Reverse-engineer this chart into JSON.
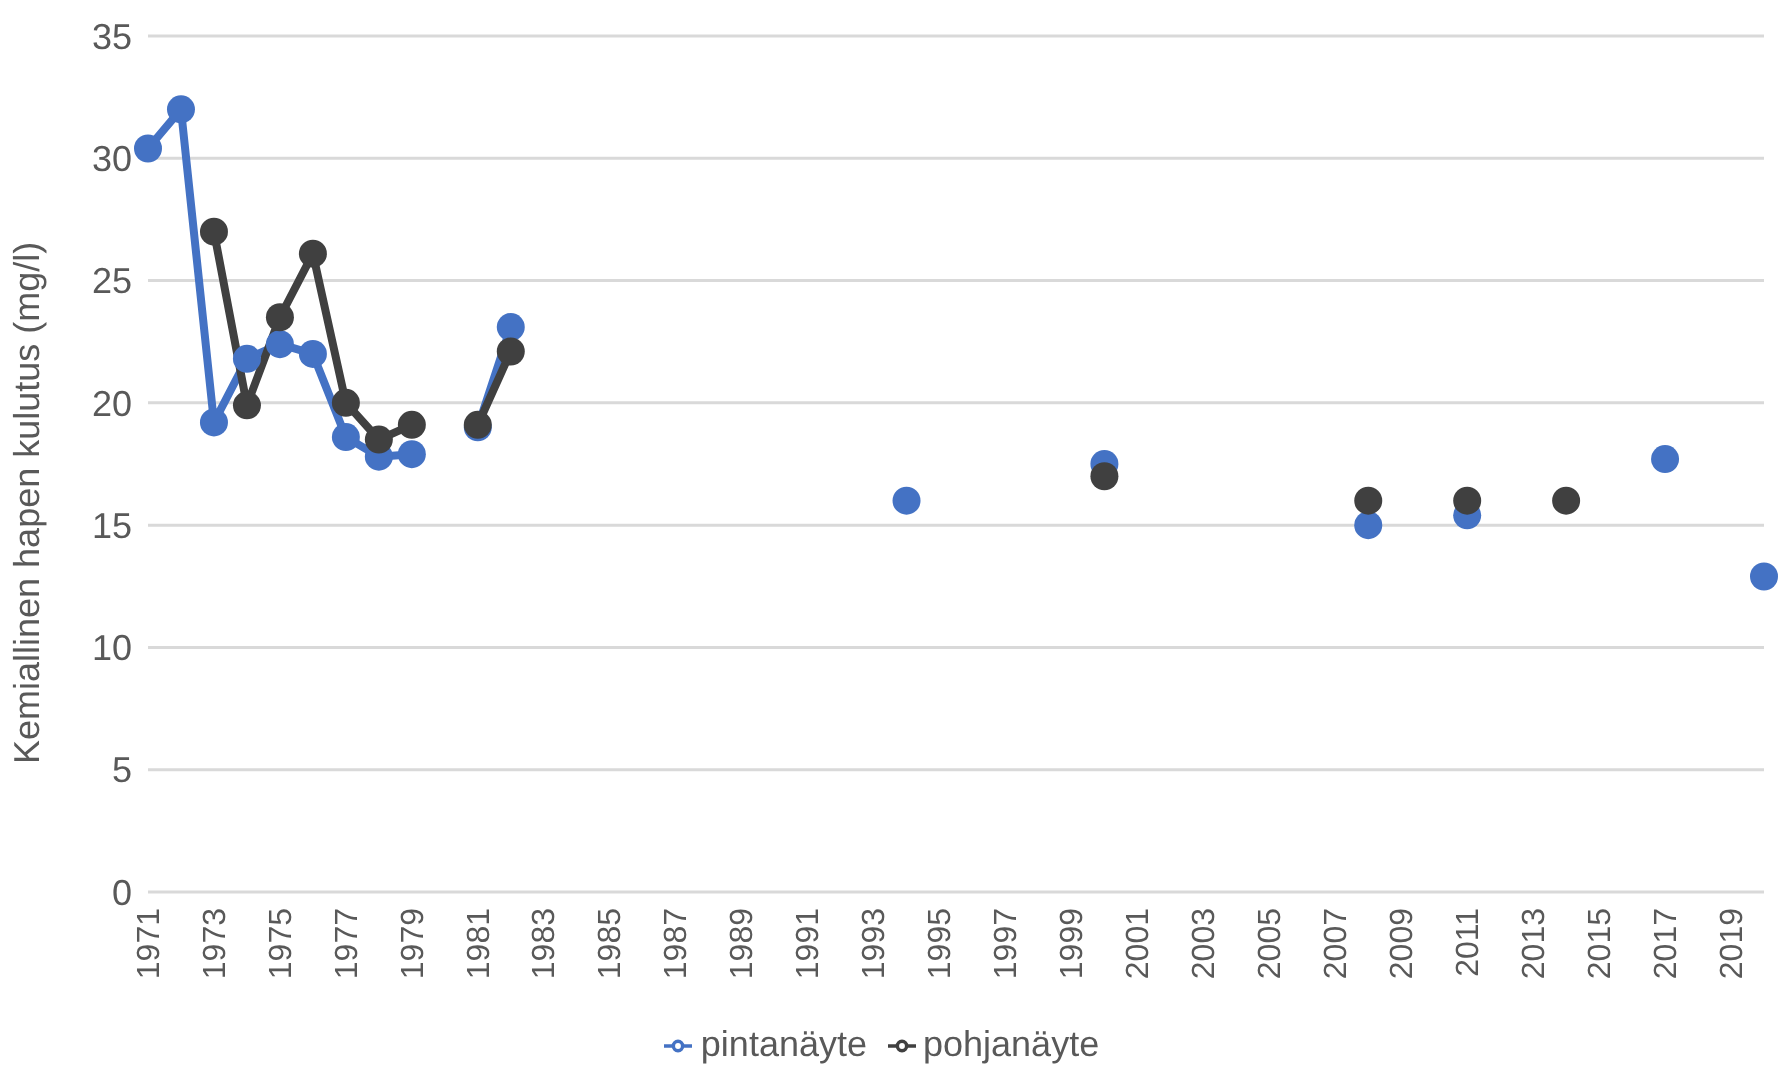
{
  "chart_data": {
    "type": "line",
    "ylabel": "Kemiallinen hapen kulutus (mg/l)",
    "categories": [
      "1971",
      null,
      "1973",
      null,
      "1975",
      null,
      "1977",
      null,
      "1979",
      null,
      "1981",
      null,
      "1983",
      null,
      "1985",
      null,
      "1987",
      null,
      "1989",
      null,
      "1991",
      null,
      "1993",
      null,
      "1995",
      null,
      "1997",
      null,
      "1999",
      null,
      "2001",
      null,
      "2003",
      null,
      "2005",
      null,
      "2007",
      null,
      "2009",
      null,
      "2011",
      null,
      "2013",
      null,
      "2015",
      null,
      "2017",
      null,
      "2019",
      null
    ],
    "series": [
      {
        "name": "pintanäyte",
        "color": "#4472c4",
        "values": [
          30.4,
          32.0,
          19.2,
          21.8,
          22.4,
          22.0,
          18.6,
          17.8,
          17.9,
          null,
          19.0,
          23.1,
          null,
          null,
          null,
          null,
          null,
          null,
          null,
          null,
          null,
          null,
          null,
          16.0,
          null,
          null,
          null,
          null,
          null,
          17.5,
          null,
          null,
          null,
          null,
          null,
          null,
          null,
          15.0,
          null,
          null,
          15.4,
          null,
          null,
          null,
          null,
          null,
          17.7,
          null,
          null,
          12.9
        ]
      },
      {
        "name": "pohjanäyte",
        "color": "#404040",
        "values": [
          null,
          null,
          27.0,
          19.9,
          23.5,
          26.1,
          20.0,
          18.5,
          19.1,
          null,
          19.1,
          22.1,
          null,
          null,
          null,
          null,
          null,
          null,
          null,
          null,
          null,
          null,
          null,
          null,
          null,
          null,
          null,
          null,
          null,
          17.0,
          null,
          null,
          null,
          null,
          null,
          null,
          null,
          16.0,
          null,
          null,
          16.0,
          null,
          null,
          16.0,
          null,
          null,
          null,
          null,
          null,
          null
        ]
      }
    ],
    "ylim": [
      0,
      35
    ],
    "yticks": [
      0,
      5,
      10,
      15,
      20,
      25,
      30,
      35
    ],
    "grid": "y",
    "legend": "bottom",
    "marker": "circle",
    "line_style": "solid"
  }
}
